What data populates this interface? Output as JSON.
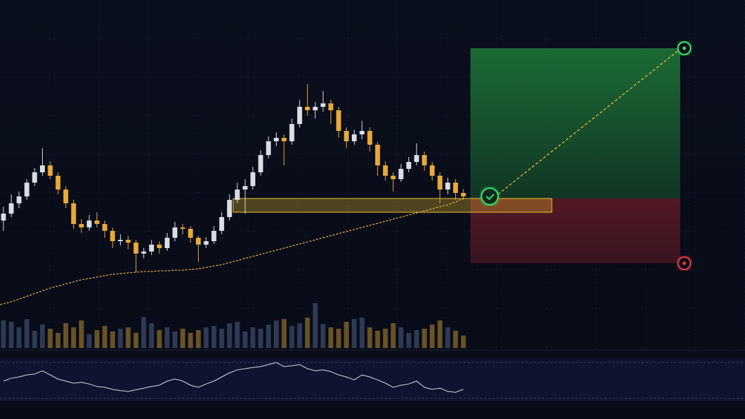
{
  "chart_data": {
    "type": "candlestick",
    "ylim": [
      0,
      600
    ],
    "up_color": "#d9dde6",
    "down_color": "#e8a93a",
    "ohlc": [
      [
        280,
        300,
        265,
        290
      ],
      [
        290,
        318,
        285,
        305
      ],
      [
        305,
        322,
        298,
        315
      ],
      [
        315,
        340,
        310,
        335
      ],
      [
        335,
        356,
        330,
        350
      ],
      [
        350,
        385,
        345,
        360
      ],
      [
        360,
        366,
        340,
        345
      ],
      [
        345,
        350,
        318,
        325
      ],
      [
        325,
        330,
        298,
        305
      ],
      [
        305,
        310,
        268,
        275
      ],
      [
        275,
        282,
        262,
        270
      ],
      [
        270,
        288,
        265,
        280
      ],
      [
        280,
        292,
        270,
        275
      ],
      [
        275,
        280,
        255,
        265
      ],
      [
        265,
        270,
        240,
        250
      ],
      [
        250,
        260,
        244,
        252
      ],
      [
        252,
        258,
        238,
        248
      ],
      [
        248,
        252,
        205,
        232
      ],
      [
        232,
        240,
        225,
        235
      ],
      [
        235,
        252,
        230,
        245
      ],
      [
        245,
        250,
        232,
        240
      ],
      [
        240,
        262,
        236,
        255
      ],
      [
        255,
        278,
        250,
        270
      ],
      [
        270,
        275,
        260,
        268
      ],
      [
        268,
        272,
        248,
        255
      ],
      [
        255,
        258,
        220,
        245
      ],
      [
        245,
        256,
        240,
        250
      ],
      [
        250,
        272,
        246,
        265
      ],
      [
        265,
        292,
        260,
        285
      ],
      [
        285,
        318,
        280,
        310
      ],
      [
        310,
        335,
        305,
        325
      ],
      [
        325,
        340,
        290,
        330
      ],
      [
        330,
        358,
        325,
        350
      ],
      [
        350,
        382,
        345,
        375
      ],
      [
        375,
        402,
        370,
        395
      ],
      [
        395,
        408,
        388,
        400
      ],
      [
        400,
        405,
        360,
        395
      ],
      [
        395,
        428,
        390,
        420
      ],
      [
        420,
        455,
        415,
        445
      ],
      [
        445,
        478,
        432,
        440
      ],
      [
        440,
        452,
        428,
        445
      ],
      [
        445,
        468,
        438,
        450
      ],
      [
        450,
        455,
        420,
        440
      ],
      [
        440,
        445,
        400,
        410
      ],
      [
        410,
        415,
        385,
        395
      ],
      [
        395,
        412,
        390,
        405
      ],
      [
        405,
        425,
        398,
        410
      ],
      [
        410,
        415,
        380,
        390
      ],
      [
        390,
        394,
        345,
        360
      ],
      [
        360,
        366,
        338,
        345
      ],
      [
        345,
        350,
        322,
        340
      ],
      [
        340,
        362,
        336,
        355
      ],
      [
        355,
        372,
        350,
        365
      ],
      [
        365,
        392,
        360,
        375
      ],
      [
        375,
        380,
        352,
        360
      ],
      [
        360,
        365,
        338,
        345
      ],
      [
        345,
        350,
        305,
        325
      ],
      [
        325,
        342,
        318,
        335
      ],
      [
        335,
        340,
        310,
        320
      ],
      [
        320,
        326,
        310,
        315
      ]
    ],
    "moving_average": [
      158,
      162,
      166,
      170,
      174,
      178,
      182,
      185,
      188,
      191,
      194,
      196,
      198,
      200,
      202,
      203,
      204,
      205,
      206,
      206,
      207,
      207,
      208,
      208,
      209,
      210,
      212,
      214,
      216,
      219,
      222,
      225,
      228,
      231,
      234,
      237,
      240,
      243,
      246,
      249,
      252,
      255,
      258,
      261,
      264,
      267,
      270,
      273,
      276,
      279,
      282,
      285,
      288,
      291,
      294,
      297,
      300,
      303,
      307,
      312
    ],
    "ma_color": "#e8a93a",
    "volume": [
      40,
      38,
      30,
      42,
      25,
      34,
      28,
      22,
      36,
      30,
      40,
      20,
      26,
      32,
      24,
      28,
      30,
      22,
      45,
      36,
      26,
      30,
      24,
      28,
      22,
      26,
      30,
      32,
      28,
      36,
      38,
      24,
      30,
      28,
      34,
      40,
      42,
      32,
      36,
      44,
      65,
      35,
      30,
      28,
      38,
      42,
      44,
      30,
      25,
      28,
      36,
      30,
      22,
      26,
      28,
      34,
      40,
      30,
      25,
      18
    ],
    "volume_lim": [
      0,
      100
    ],
    "oscillator": [
      45,
      52,
      55,
      60,
      62,
      70,
      60,
      50,
      45,
      40,
      42,
      38,
      32,
      30,
      25,
      22,
      20,
      24,
      28,
      32,
      35,
      45,
      50,
      45,
      35,
      30,
      38,
      45,
      55,
      65,
      72,
      75,
      78,
      80,
      85,
      90,
      80,
      82,
      85,
      75,
      70,
      72,
      68,
      60,
      55,
      48,
      60,
      55,
      48,
      40,
      30,
      35,
      38,
      45,
      30,
      25,
      28,
      20,
      18,
      25
    ],
    "oscillator_lim": [
      0,
      100
    ],
    "entry": 312,
    "target": 530,
    "stop": 218,
    "zone": [
      292,
      312
    ],
    "target_color": "#3ddc6a",
    "stop_color": "#e5393f",
    "entry_color": "#f2c230"
  }
}
